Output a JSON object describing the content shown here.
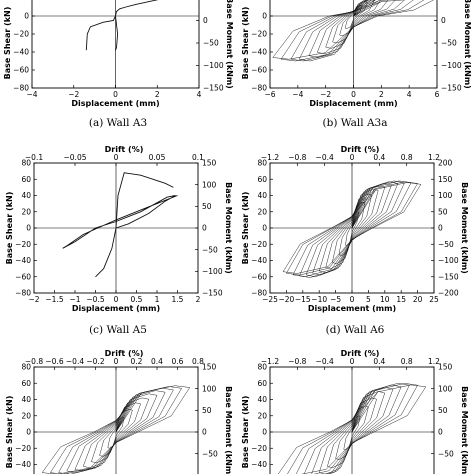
{
  "chart_data": [
    {
      "id": "a",
      "type": "line",
      "caption": "(a) Wall A3",
      "xlabel": "Displacement (mm)",
      "ylabel": "Base Shear (kN)",
      "y2label": "Base Moment (kNm)",
      "xlim": [
        -4,
        4
      ],
      "xticks": [
        -4,
        -2,
        0,
        2,
        4
      ],
      "ylim": [
        -80,
        20
      ],
      "yticks": [
        -80,
        -60,
        -40,
        -20,
        0,
        20
      ],
      "y2lim": [
        -150,
        50
      ],
      "y2ticks": [
        -150,
        -100,
        -50,
        0
      ],
      "top_axis": null,
      "series": [
        {
          "style": "env",
          "points": [
            [
              -1.4,
              -38
            ],
            [
              -1.35,
              -20
            ],
            [
              -1.2,
              -12
            ],
            [
              -0.6,
              -7
            ],
            [
              -0.1,
              -5
            ],
            [
              0,
              0
            ],
            [
              0.05,
              5
            ],
            [
              0.2,
              8
            ],
            [
              0.5,
              10
            ],
            [
              1.0,
              13
            ],
            [
              2.2,
              19
            ],
            [
              3.3,
              20
            ],
            [
              4.0,
              20
            ]
          ]
        },
        {
          "style": "env",
          "points": [
            [
              0,
              0
            ],
            [
              0.1,
              -20
            ],
            [
              0.05,
              -35
            ],
            [
              0,
              -38
            ]
          ]
        }
      ]
    },
    {
      "id": "b",
      "type": "line",
      "caption": "(b) Wall A3a",
      "xlabel": "Displacement (mm)",
      "ylabel": "Base Shear (kN)",
      "y2label": "Base Moment (kNm)",
      "xlim": [
        -6,
        6
      ],
      "xticks": [
        -6,
        -4,
        -2,
        0,
        2,
        4,
        6
      ],
      "ylim": [
        -80,
        20
      ],
      "yticks": [
        -80,
        -60,
        -40,
        -20,
        0,
        20
      ],
      "y2lim": [
        -150,
        50
      ],
      "y2ticks": [
        -150,
        -100,
        -50,
        0,
        50
      ],
      "top_axis": null,
      "series": [
        {
          "style": "hyst",
          "kind": "loops",
          "xmax": [
            0.6,
            1.0,
            1.5,
            2.0,
            2.6,
            3.2,
            3.9,
            4.5,
            5.2,
            5.8
          ],
          "ypos": [
            12,
            16,
            18,
            20,
            21,
            22,
            22,
            21,
            20,
            19
          ],
          "yneg": [
            -14,
            -22,
            -30,
            -36,
            -42,
            -46,
            -50,
            -50,
            -50,
            -48
          ]
        }
      ]
    },
    {
      "id": "c",
      "type": "line",
      "caption": "(c) Wall A5",
      "xlabel": "Displacement (mm)",
      "ylabel": "Base Shear (kN)",
      "y2label": "Base Moment (kNm)",
      "toplabel": "Drift (%)",
      "xlim": [
        -2,
        2
      ],
      "xticks": [
        -2,
        -1.5,
        -1,
        -0.5,
        0,
        0.5,
        1,
        1.5,
        2
      ],
      "ylim": [
        -80,
        80
      ],
      "yticks": [
        -80,
        -60,
        -40,
        -20,
        0,
        20,
        40,
        60,
        80
      ],
      "y2lim": [
        -150,
        150
      ],
      "y2ticks": [
        -150,
        -100,
        -50,
        0,
        50,
        100,
        150
      ],
      "top_axis": {
        "lim": [
          -0.1,
          0.1
        ],
        "ticks": [
          -0.1,
          -0.05,
          0,
          0.05,
          0.1
        ]
      },
      "series": [
        {
          "style": "env",
          "points": [
            [
              0,
              0
            ],
            [
              0.3,
              5
            ],
            [
              0.8,
              18
            ],
            [
              1.2,
              33
            ],
            [
              1.45,
              40
            ],
            [
              1.25,
              38
            ],
            [
              0.6,
              20
            ],
            [
              0,
              8
            ],
            [
              -0.5,
              0
            ],
            [
              -1.0,
              -17
            ],
            [
              -1.3,
              -25
            ],
            [
              -1.2,
              -22
            ],
            [
              -0.8,
              -8
            ],
            [
              0,
              10
            ],
            [
              0.6,
              22
            ],
            [
              1.0,
              30
            ],
            [
              1.5,
              40
            ]
          ]
        },
        {
          "style": "env",
          "points": [
            [
              0,
              0
            ],
            [
              0.05,
              40
            ],
            [
              0.2,
              68
            ],
            [
              0.6,
              65
            ],
            [
              1.2,
              55
            ],
            [
              1.4,
              50
            ]
          ]
        },
        {
          "style": "env",
          "points": [
            [
              0,
              0
            ],
            [
              -0.1,
              -25
            ],
            [
              -0.3,
              -50
            ],
            [
              -0.5,
              -60
            ],
            [
              -0.4,
              -55
            ]
          ]
        }
      ]
    },
    {
      "id": "d",
      "type": "line",
      "caption": "(d) Wall A6",
      "xlabel": "Displacement (mm)",
      "ylabel": "Base Shear (kN)",
      "y2label": "Base Moment (kNm)",
      "toplabel": "Drift (%)",
      "xlim": [
        -25,
        25
      ],
      "xticks": [
        -25,
        -20,
        -15,
        -10,
        -5,
        0,
        5,
        10,
        15,
        20,
        25
      ],
      "ylim": [
        -80,
        80
      ],
      "yticks": [
        -80,
        -60,
        -40,
        -20,
        0,
        20,
        40,
        60,
        80
      ],
      "y2lim": [
        -200,
        200
      ],
      "y2ticks": [
        -200,
        -150,
        -100,
        -50,
        0,
        50,
        100,
        150,
        200
      ],
      "top_axis": {
        "lim": [
          -1.2,
          1.2
        ],
        "ticks": [
          -1.2,
          -0.8,
          -0.4,
          0,
          0.4,
          0.8,
          1.2
        ]
      },
      "series": [
        {
          "style": "hyst",
          "kind": "loops",
          "xmax": [
            2,
            4,
            6,
            8,
            10,
            12,
            14,
            16,
            18,
            20,
            21
          ],
          "ypos": [
            20,
            32,
            42,
            48,
            52,
            55,
            57,
            58,
            58,
            57,
            56
          ],
          "yneg": [
            -22,
            -34,
            -44,
            -50,
            -55,
            -58,
            -60,
            -61,
            -60,
            -58,
            -56
          ]
        }
      ]
    },
    {
      "id": "e",
      "type": "line",
      "caption": "",
      "xlabel": "",
      "ylabel": "Base Shear (kN)",
      "y2label": "Base Moment (kNm)",
      "toplabel": "Drift (%)",
      "xlim": [
        -20,
        20
      ],
      "xticks": [],
      "ylim": [
        -80,
        80
      ],
      "yticks": [
        -40,
        -20,
        0,
        20,
        40,
        60,
        80
      ],
      "y2lim": [
        -150,
        150
      ],
      "y2ticks": [
        -50,
        0,
        50,
        100,
        150
      ],
      "top_axis": {
        "lim": [
          -0.8,
          0.8
        ],
        "ticks": [
          -0.8,
          -0.6,
          -0.4,
          -0.2,
          0,
          0.2,
          0.4,
          0.6,
          0.8
        ]
      },
      "series": [
        {
          "style": "hyst",
          "kind": "loops",
          "xmax": [
            2,
            4,
            6,
            8,
            10,
            12,
            14,
            16,
            18
          ],
          "ypos": [
            18,
            28,
            36,
            42,
            47,
            51,
            54,
            56,
            57
          ],
          "yneg": [
            -20,
            -30,
            -38,
            -44,
            -48,
            -50,
            -52,
            -52,
            -52
          ]
        }
      ]
    },
    {
      "id": "f",
      "type": "line",
      "caption": "",
      "xlabel": "",
      "ylabel": "Base Shear (kN)",
      "y2label": "Base Moment (kNm)",
      "toplabel": "Drift (%)",
      "xlim": [
        -30,
        30
      ],
      "xticks": [],
      "ylim": [
        -80,
        80
      ],
      "yticks": [
        -40,
        -20,
        0,
        20,
        40,
        60,
        80
      ],
      "y2lim": [
        -150,
        150
      ],
      "y2ticks": [
        -50,
        0,
        50,
        100,
        150
      ],
      "top_axis": {
        "lim": [
          -1.2,
          1.2
        ],
        "ticks": [
          -1.2,
          -0.8,
          -0.4,
          0,
          0.4,
          0.8,
          1.2
        ]
      },
      "series": [
        {
          "style": "hyst",
          "kind": "loops",
          "xmax": [
            3,
            6,
            9,
            12,
            15,
            18,
            21,
            24,
            27
          ],
          "ypos": [
            20,
            32,
            42,
            50,
            55,
            58,
            60,
            60,
            58
          ],
          "yneg": [
            -22,
            -34,
            -44,
            -52,
            -56,
            -58,
            -58,
            -56,
            -54
          ]
        }
      ]
    }
  ]
}
